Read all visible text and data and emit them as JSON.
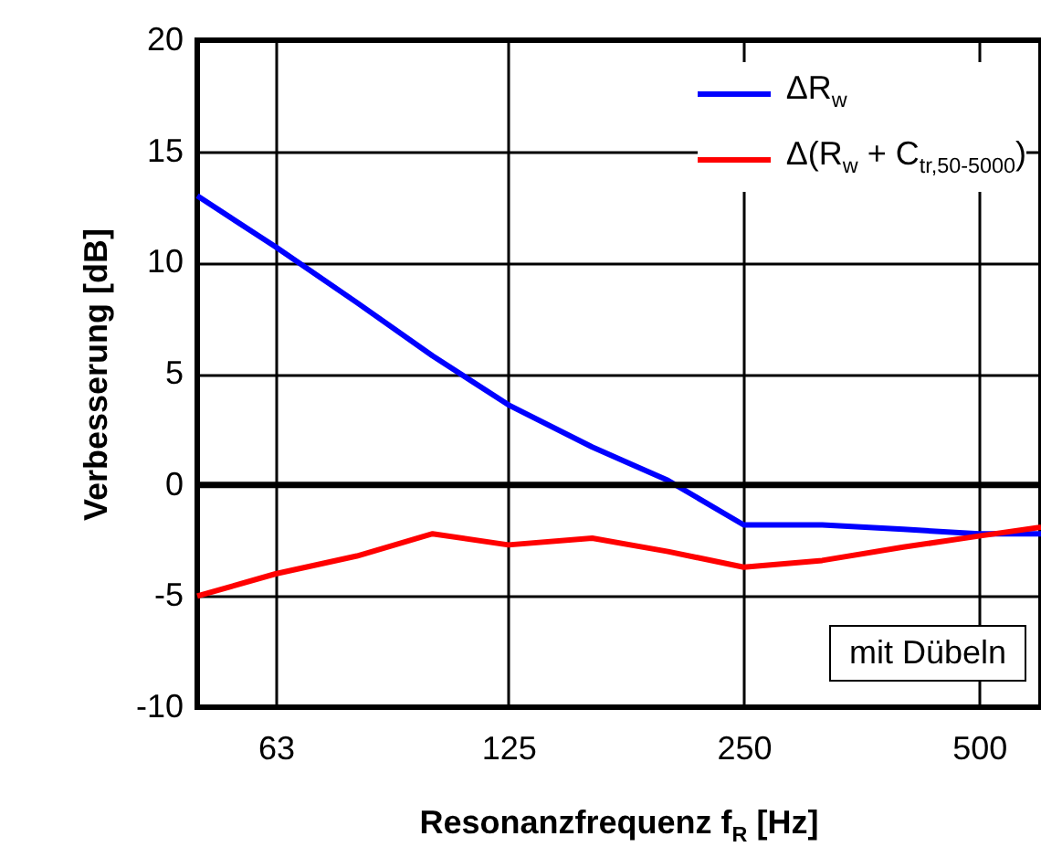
{
  "chart_data": {
    "type": "line",
    "xlabel": "Resonanzfrequenz f$_{R}$ [Hz]",
    "ylabel": "Verbesserung [dB]",
    "x": [
      50,
      63,
      80,
      100,
      125,
      160,
      200,
      250,
      315,
      400,
      500,
      600
    ],
    "series": [
      {
        "name": "ΔR$_{w}$",
        "color": "#0000ff",
        "values": [
          13.0,
          10.7,
          8.2,
          5.8,
          3.6,
          1.7,
          0.2,
          -1.8,
          -1.8,
          -2.0,
          -2.2,
          -2.2
        ]
      },
      {
        "name": "Δ(R$_{w}$ + C$_{tr,50-5000}$)",
        "color": "#ff0000",
        "values": [
          -5.0,
          -4.0,
          -3.2,
          -2.2,
          -2.7,
          -2.4,
          -3.0,
          -3.7,
          -3.4,
          -2.8,
          -2.3,
          -1.9
        ]
      }
    ],
    "xlim": [
      50,
      600
    ],
    "xticks": [
      63,
      125,
      250,
      500
    ],
    "ylim": [
      -10,
      20
    ],
    "yticks": [
      -10,
      -5,
      0,
      5,
      10,
      15,
      20
    ],
    "log": "x",
    "grid": true,
    "legend": "top right",
    "marker": "none",
    "line_style": "solid",
    "ref_lines": [
      {
        "axis": "y",
        "value": 0,
        "color": "#000000"
      }
    ],
    "annotations": [
      "mit Dübeln"
    ]
  }
}
